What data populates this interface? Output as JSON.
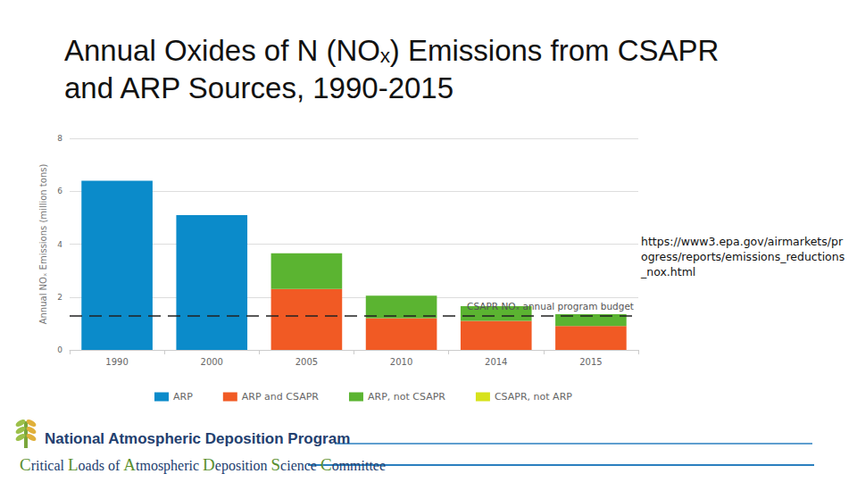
{
  "chart_data": {
    "type": "bar",
    "title": "Annual Oxides of N (NOₓ) Emissions from CSAPR and ARP Sources, 1990-2015",
    "y_label": "Annual NOₓ Emissions (million tons)",
    "categories": [
      "1990",
      "2000",
      "2005",
      "2010",
      "2014",
      "2015"
    ],
    "series": [
      {
        "name": "ARP",
        "color": "#0b8bca",
        "values": [
          6.4,
          5.1,
          null,
          null,
          null,
          null
        ]
      },
      {
        "name": "ARP and CSAPR",
        "color": "#f15a24",
        "values": [
          null,
          null,
          2.3,
          1.2,
          1.1,
          0.9
        ]
      },
      {
        "name": "ARP, not CSAPR",
        "color": "#5bb431",
        "values": [
          null,
          null,
          1.35,
          0.85,
          0.55,
          0.45
        ]
      },
      {
        "name": "CSAPR, not ARP",
        "color": "#d7e21b",
        "values": [
          null,
          null,
          0,
          0,
          0,
          0
        ]
      }
    ],
    "reference_line": {
      "label": "CSAPR NOₓ annual program budget",
      "value": 1.3
    },
    "stacked": true,
    "ylim": [
      0,
      8
    ],
    "yticks": [
      0,
      2,
      4,
      6,
      8
    ],
    "grid": true,
    "legend": "bottom"
  },
  "source": "https://www3.epa.gov/airmarkets/progress/reports/emissions_reductions_nox.html",
  "footer": [
    "National Atmospheric Deposition Program",
    "Critical Loads of Atmospheric Deposition Science Committee"
  ]
}
